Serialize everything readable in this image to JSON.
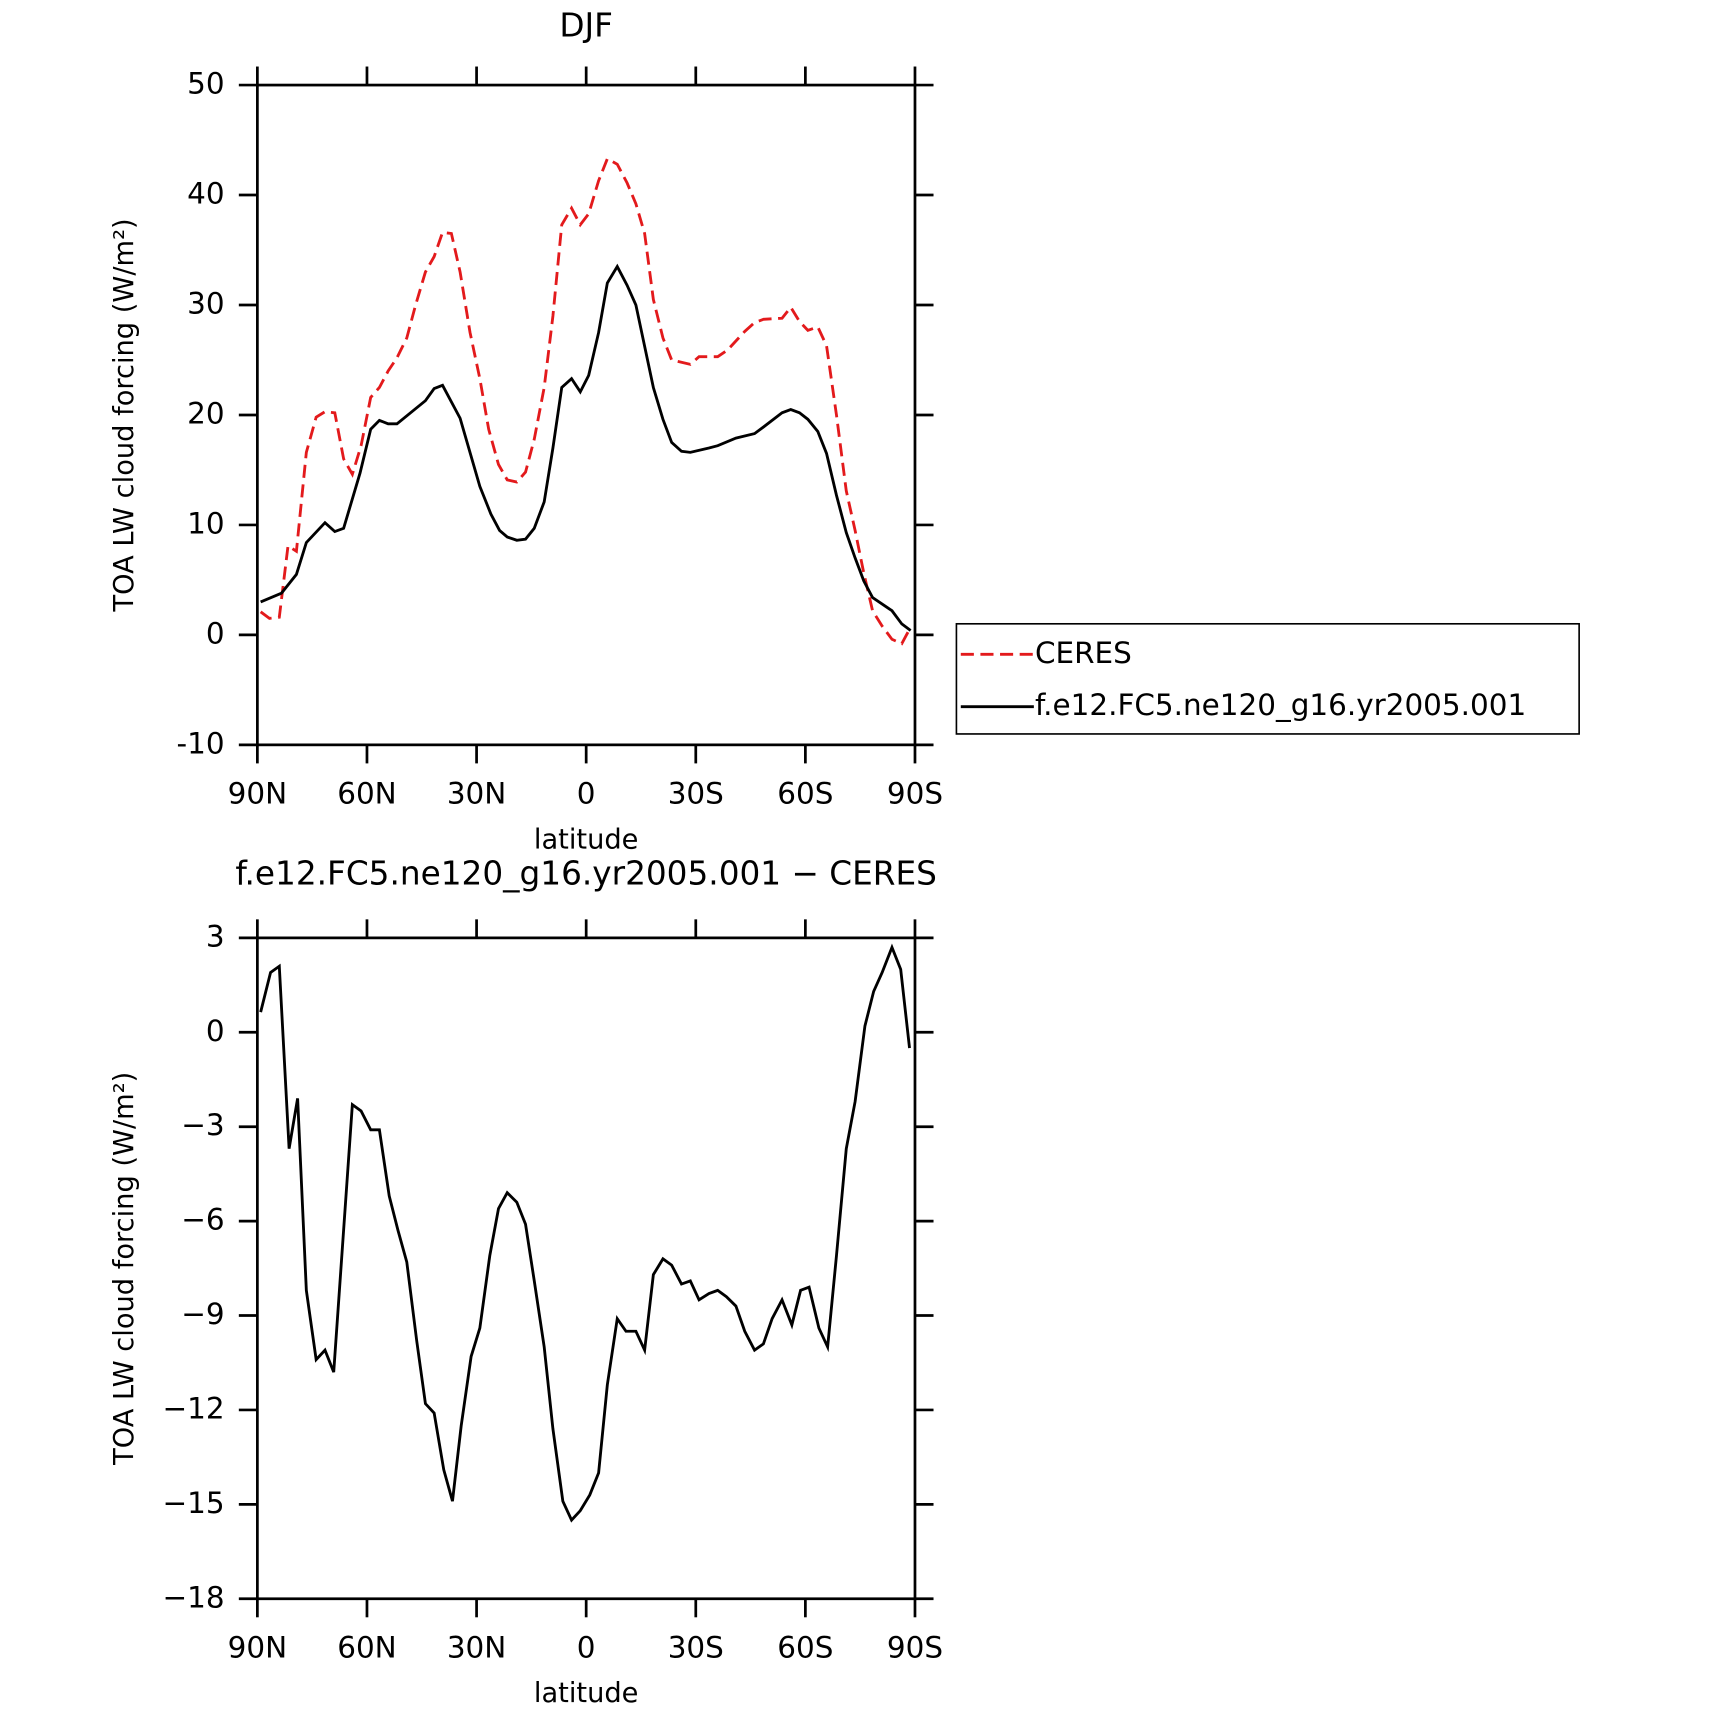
{
  "chart_data": [
    {
      "type": "line",
      "title": "DJF",
      "xlabel": "latitude",
      "ylabel": "TOA LW cloud forcing (W/m²)",
      "xlim": [
        90,
        -90
      ],
      "xticks": [
        {
          "value": 90,
          "label": "90N"
        },
        {
          "value": 60,
          "label": "60N"
        },
        {
          "value": 30,
          "label": "30N"
        },
        0,
        {
          "value": -30,
          "label": "30S"
        },
        {
          "value": -60,
          "label": "60S"
        },
        {
          "value": -90,
          "label": "90S"
        }
      ],
      "ylim": [
        -10,
        50
      ],
      "yticks": [
        -10,
        0,
        10,
        20,
        30,
        40,
        50
      ],
      "legend": "right",
      "series": [
        {
          "name": "CERES",
          "color": "#e31a1c",
          "style": "dashed",
          "x": [
            89.1,
            86.7,
            84.0,
            81.6,
            79.3,
            76.6,
            73.9,
            71.5,
            68.8,
            66.4,
            64.0,
            61.6,
            59.0,
            56.6,
            54.2,
            51.8,
            49.1,
            46.7,
            44.0,
            41.6,
            39.3,
            36.9,
            34.5,
            31.8,
            29.1,
            26.7,
            24.0,
            21.6,
            19.0,
            16.6,
            14.2,
            11.5,
            9.1,
            6.7,
            4.0,
            1.6,
            -0.7,
            -3.4,
            -5.8,
            -8.5,
            -11.2,
            -13.6,
            -16.0,
            -18.4,
            -21.0,
            -23.4,
            -28.5,
            -30.9,
            -36.0,
            -38.7,
            -43.4,
            -46.1,
            -48.5,
            -53.6,
            -56.0,
            -58.4,
            -60.7,
            -63.4,
            -65.8,
            -68.5,
            -71.2,
            -73.6,
            -76.0,
            -78.4,
            -81.0,
            -83.7,
            -86.4,
            -88.8
          ],
          "values": [
            2.1,
            1.5,
            1.6,
            8.1,
            7.6,
            16.6,
            19.8,
            20.3,
            20.2,
            16.0,
            14.6,
            17.2,
            21.6,
            22.5,
            24.0,
            25.2,
            27.0,
            30.0,
            33.0,
            34.4,
            36.6,
            36.5,
            33.0,
            27.5,
            23.3,
            18.7,
            15.5,
            14.1,
            13.9,
            14.8,
            17.8,
            22.5,
            29.0,
            37.3,
            38.8,
            37.3,
            38.3,
            41.3,
            43.3,
            42.8,
            41.1,
            39.2,
            36.5,
            30.5,
            27.0,
            25.0,
            24.6,
            25.3,
            25.3,
            25.9,
            27.6,
            28.4,
            28.7,
            28.8,
            29.8,
            28.5,
            27.7,
            28.0,
            26.3,
            20.0,
            13.1,
            9.5,
            5.6,
            2.2,
            0.8,
            -0.4,
            -0.8,
            0.7
          ]
        },
        {
          "name": "f.e12.FC5.ne120_g16.yr2005.001",
          "color": "#000000",
          "style": "solid",
          "x": [
            89.1,
            83.4,
            79.3,
            76.6,
            71.5,
            68.8,
            66.4,
            61.9,
            59.0,
            56.6,
            54.2,
            51.8,
            44.0,
            41.6,
            39.3,
            34.5,
            29.1,
            26.1,
            23.7,
            21.6,
            19.0,
            16.6,
            14.2,
            11.5,
            9.1,
            6.7,
            4.0,
            1.6,
            -0.7,
            -3.4,
            -5.8,
            -8.5,
            -11.2,
            -13.6,
            -18.4,
            -21.0,
            -23.4,
            -26.1,
            -28.5,
            -33.6,
            -36.0,
            -41.0,
            -46.1,
            -48.5,
            -53.6,
            -56.0,
            -58.4,
            -60.7,
            -63.4,
            -65.8,
            -68.5,
            -71.2,
            -73.6,
            -76.0,
            -78.4,
            -83.7,
            -86.4,
            -88.8
          ],
          "values": [
            3.0,
            3.8,
            5.5,
            8.4,
            10.2,
            9.4,
            9.7,
            14.7,
            18.7,
            19.5,
            19.2,
            19.2,
            21.3,
            22.4,
            22.7,
            19.7,
            13.5,
            11.0,
            9.5,
            8.9,
            8.6,
            8.7,
            9.7,
            12.1,
            17.0,
            22.5,
            23.3,
            22.1,
            23.6,
            27.5,
            32.0,
            33.5,
            31.8,
            30.0,
            22.5,
            19.6,
            17.5,
            16.7,
            16.6,
            17.0,
            17.2,
            17.9,
            18.3,
            18.9,
            20.2,
            20.5,
            20.2,
            19.6,
            18.5,
            16.5,
            12.7,
            9.3,
            7.0,
            4.9,
            3.4,
            2.2,
            1.0,
            0.4
          ]
        }
      ]
    },
    {
      "type": "line",
      "title": "f.e12.FC5.ne120_g16.yr2005.001 − CERES",
      "xlabel": "latitude",
      "ylabel": "TOA LW cloud forcing (W/m²)",
      "xlim": [
        90,
        -90
      ],
      "xticks": [
        {
          "value": 90,
          "label": "90N"
        },
        {
          "value": 60,
          "label": "60N"
        },
        {
          "value": 30,
          "label": "30N"
        },
        0,
        {
          "value": -30,
          "label": "30S"
        },
        {
          "value": -60,
          "label": "60S"
        },
        {
          "value": -90,
          "label": "90S"
        }
      ],
      "ylim": [
        -18,
        3
      ],
      "yticks": [
        {
          "value": -18,
          "label": "−18"
        },
        {
          "value": -15,
          "label": "−15"
        },
        {
          "value": -12,
          "label": "−12"
        },
        {
          "value": -9,
          "label": "−9"
        },
        {
          "value": -6,
          "label": "−6"
        },
        {
          "value": -3,
          "label": "−3"
        },
        0,
        3
      ],
      "series": [
        {
          "color": "#000000",
          "style": "solid",
          "x": [
            89.1,
            86.4,
            84.0,
            81.3,
            79.0,
            76.6,
            73.9,
            71.5,
            69.1,
            64.0,
            61.6,
            59.0,
            56.6,
            53.9,
            51.5,
            49.1,
            46.4,
            44.0,
            41.6,
            39.0,
            36.6,
            34.2,
            31.5,
            29.1,
            26.4,
            24.0,
            21.6,
            19.0,
            16.6,
            14.2,
            11.5,
            9.1,
            6.4,
            4.0,
            1.6,
            -1.0,
            -3.4,
            -5.8,
            -8.5,
            -10.9,
            -13.6,
            -16.0,
            -18.4,
            -21.0,
            -23.4,
            -26.1,
            -28.5,
            -30.9,
            -33.6,
            -36.0,
            -38.4,
            -41.0,
            -43.4,
            -46.1,
            -48.5,
            -50.9,
            -53.6,
            -56.3,
            -58.7,
            -61.0,
            -63.7,
            -66.1,
            -68.5,
            -71.2,
            -73.6,
            -76.3,
            -78.7,
            -81.0,
            -83.7,
            -86.1,
            -88.5
          ],
          "values": [
            0.64,
            1.9,
            2.1,
            -3.7,
            -2.1,
            -8.2,
            -10.4,
            -10.1,
            -10.8,
            -2.3,
            -2.5,
            -3.1,
            -3.1,
            -5.2,
            -6.3,
            -7.3,
            -9.8,
            -11.8,
            -12.1,
            -13.9,
            -14.9,
            -12.5,
            -10.3,
            -9.4,
            -7.1,
            -5.6,
            -5.1,
            -5.4,
            -6.1,
            -7.9,
            -10.0,
            -12.6,
            -14.9,
            -15.5,
            -15.2,
            -14.7,
            -14.0,
            -11.2,
            -9.1,
            -9.5,
            -9.5,
            -10.1,
            -7.7,
            -7.2,
            -7.4,
            -8.0,
            -7.9,
            -8.5,
            -8.3,
            -8.2,
            -8.4,
            -8.7,
            -9.5,
            -10.1,
            -9.9,
            -9.1,
            -8.5,
            -9.3,
            -8.2,
            -8.1,
            -9.4,
            -10.0,
            -7.1,
            -3.7,
            -2.2,
            0.2,
            1.3,
            1.9,
            2.7,
            2.0,
            -0.5
          ]
        }
      ]
    }
  ]
}
